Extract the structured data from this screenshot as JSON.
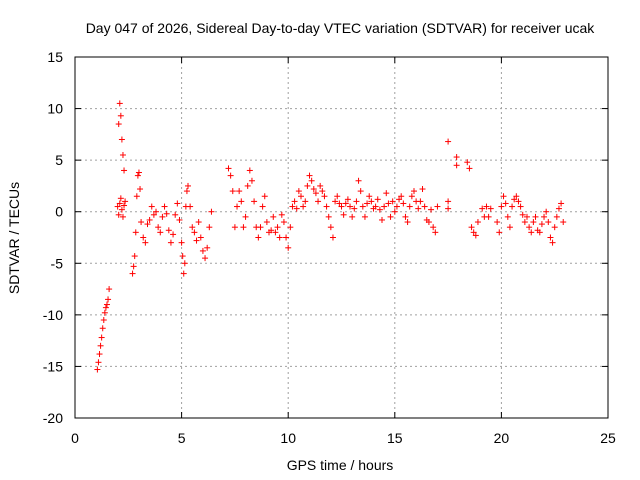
{
  "chart_data": {
    "type": "scatter",
    "title": "Day 047 of 2026, Sidereal Day-to-day VTEC variation (SDTVAR) for receiver ucak",
    "xlabel": "GPS time / hours",
    "ylabel": "SDTVAR / TECUs",
    "xlim": [
      0,
      25
    ],
    "ylim": [
      -20,
      15
    ],
    "x_ticks": [
      0,
      5,
      10,
      15,
      20,
      25
    ],
    "y_ticks": [
      -20,
      -15,
      -10,
      -5,
      0,
      5,
      10,
      15
    ],
    "x_tick_labels": [
      "0",
      "5",
      "10",
      "15",
      "20",
      "25"
    ],
    "y_tick_labels": [
      "-20",
      "-15",
      "-10",
      "-5",
      "0",
      "5",
      "10",
      "15"
    ],
    "grid": true,
    "marker": "+",
    "color": "#ff0000",
    "series": [
      {
        "name": "SDTVAR",
        "x": [
          1.05,
          1.1,
          1.15,
          1.2,
          1.25,
          1.3,
          1.35,
          1.4,
          1.45,
          1.5,
          1.55,
          1.6,
          2.0,
          2.05,
          2.1,
          2.15,
          2.2,
          2.25,
          2.3,
          2.35,
          2.05,
          2.1,
          2.15,
          2.2,
          2.25,
          2.3,
          2.7,
          2.75,
          2.8,
          2.85,
          2.9,
          2.95,
          3.0,
          3.05,
          3.1,
          3.2,
          3.3,
          3.4,
          3.5,
          3.6,
          3.7,
          3.8,
          3.9,
          4.0,
          4.1,
          4.2,
          4.3,
          4.4,
          4.5,
          4.6,
          4.7,
          4.8,
          4.9,
          5.0,
          5.05,
          5.1,
          5.15,
          5.2,
          5.25,
          5.3,
          5.4,
          5.5,
          5.6,
          5.7,
          5.8,
          5.9,
          6.0,
          6.1,
          6.2,
          6.3,
          6.4,
          7.2,
          7.3,
          7.4,
          7.5,
          7.6,
          7.7,
          7.8,
          7.9,
          8.0,
          8.1,
          8.2,
          8.3,
          8.4,
          8.5,
          8.6,
          8.7,
          8.8,
          8.9,
          9.0,
          9.1,
          9.2,
          9.3,
          9.4,
          9.5,
          9.6,
          9.7,
          9.8,
          9.9,
          10.0,
          10.1,
          10.2,
          10.3,
          10.4,
          10.5,
          10.6,
          10.7,
          10.8,
          10.9,
          11.0,
          11.1,
          11.2,
          11.3,
          11.4,
          11.5,
          11.6,
          11.7,
          11.8,
          11.9,
          12.0,
          12.1,
          12.2,
          12.3,
          12.4,
          12.5,
          12.6,
          12.7,
          12.8,
          12.9,
          13.0,
          13.1,
          13.2,
          13.3,
          13.4,
          13.5,
          13.6,
          13.7,
          13.8,
          13.9,
          14.0,
          14.1,
          14.2,
          14.3,
          14.4,
          14.5,
          14.6,
          14.7,
          14.8,
          14.9,
          15.0,
          15.1,
          15.2,
          15.3,
          15.4,
          15.5,
          15.6,
          15.7,
          15.8,
          15.9,
          16.0,
          16.1,
          16.2,
          16.3,
          16.4,
          16.5,
          16.6,
          16.7,
          16.8,
          16.9,
          17.0,
          17.5,
          17.5,
          17.5,
          17.9,
          17.9,
          18.4,
          18.5,
          18.6,
          18.7,
          18.8,
          18.9,
          19.1,
          19.2,
          19.3,
          19.4,
          19.5,
          19.8,
          19.9,
          20.0,
          20.1,
          20.2,
          20.3,
          20.4,
          20.5,
          20.6,
          20.7,
          20.8,
          20.9,
          21.0,
          21.1,
          21.2,
          21.3,
          21.4,
          21.5,
          21.6,
          21.7,
          21.8,
          21.9,
          22.0,
          22.1,
          22.2,
          22.3,
          22.4,
          22.5,
          22.6,
          22.7,
          22.8,
          22.9
        ],
        "y": [
          -15.3,
          -14.6,
          -13.8,
          -13.0,
          -12.2,
          -11.3,
          -10.5,
          -9.8,
          -9.3,
          -9.0,
          -8.5,
          -7.5,
          0.5,
          8.5,
          10.5,
          9.3,
          7.0,
          5.5,
          4.0,
          1.0,
          -0.3,
          0.8,
          1.3,
          0.2,
          -0.5,
          0.6,
          -6.0,
          -5.3,
          -4.3,
          -2.0,
          1.5,
          3.5,
          3.8,
          2.2,
          -1.0,
          -2.5,
          -3.0,
          -1.2,
          -0.8,
          0.5,
          -0.3,
          0.0,
          -1.5,
          -2.0,
          -0.5,
          0.5,
          -0.2,
          -1.8,
          -3.0,
          -2.2,
          -0.3,
          0.8,
          -0.8,
          -3.0,
          -4.3,
          -6.0,
          -5.0,
          0.5,
          2.0,
          2.5,
          0.5,
          -1.5,
          -2.0,
          -2.8,
          -1.0,
          -2.5,
          -3.8,
          -4.5,
          -3.5,
          -1.5,
          0.0,
          4.2,
          3.5,
          2.0,
          -1.5,
          0.5,
          2.0,
          1.0,
          -1.5,
          -0.5,
          2.5,
          4.0,
          3.0,
          1.0,
          -1.5,
          -2.5,
          -1.5,
          0.5,
          1.5,
          -1.0,
          -2.0,
          -1.8,
          -0.5,
          -2.0,
          -1.5,
          -2.5,
          -0.3,
          -1.0,
          -2.5,
          -3.5,
          -1.5,
          0.5,
          1.0,
          0.3,
          2.0,
          1.5,
          0.5,
          1.0,
          2.5,
          3.5,
          3.0,
          2.2,
          1.8,
          1.0,
          2.5,
          2.0,
          1.5,
          0.5,
          -0.5,
          -1.5,
          -2.5,
          1.0,
          1.5,
          0.8,
          0.5,
          -0.3,
          0.8,
          1.2,
          0.5,
          -0.5,
          0.3,
          1.0,
          3.0,
          2.0,
          0.5,
          -0.5,
          0.8,
          1.5,
          1.0,
          0.3,
          0.5,
          1.2,
          0.2,
          -0.8,
          0.5,
          1.8,
          0.8,
          -0.5,
          1.0,
          0.0,
          0.5,
          1.2,
          1.5,
          0.8,
          -0.5,
          -1.0,
          0.5,
          1.5,
          2.0,
          1.0,
          0.3,
          1.0,
          2.2,
          0.5,
          -0.8,
          -1.0,
          0.2,
          -1.5,
          -2.0,
          0.5,
          1.0,
          0.3,
          6.8,
          5.3,
          4.5,
          4.8,
          4.2,
          -1.5,
          -2.0,
          -2.3,
          -1.0,
          0.3,
          -0.5,
          0.5,
          -0.5,
          0.3,
          -1.0,
          -2.0,
          0.5,
          1.5,
          0.8,
          -0.5,
          -1.5,
          0.5,
          1.2,
          1.5,
          1.0,
          0.5,
          -0.3,
          -1.0,
          -0.5,
          -1.5,
          -2.0,
          -1.0,
          -0.5,
          -1.8,
          -2.0,
          -1.2,
          -0.5,
          0.0,
          -1.0,
          -2.5,
          -3.0,
          -1.5,
          -0.5,
          0.3,
          0.8,
          -1.0
        ]
      }
    ]
  }
}
